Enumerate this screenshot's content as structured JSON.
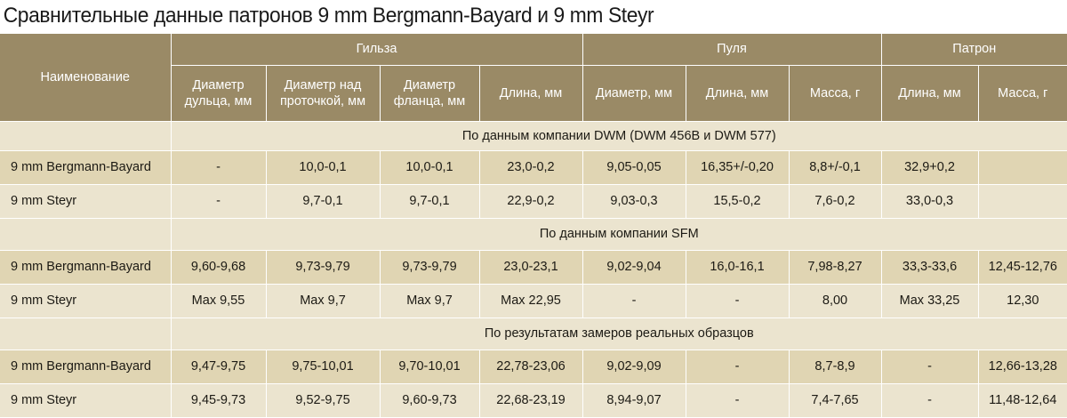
{
  "title": "Сравнительные данные патронов 9 mm Bergmann-Bayard и 9 mm Steyr",
  "header": {
    "name_col": "Наименование",
    "groups": {
      "case": "Гильза",
      "bullet": "Пуля",
      "cartridge": "Патрон"
    },
    "columns": [
      "Диаметр дульца, мм",
      "Диаметр над проточкой, мм",
      "Диаметр фланца, мм",
      "Длина, мм",
      "Диаметр, мм",
      "Длина, мм",
      "Масса, г",
      "Длина, мм",
      "Масса, г"
    ]
  },
  "sections": [
    {
      "label": "По данным компании DWM (DWM 456B и DWM 577)",
      "rows": [
        {
          "name": "9 mm Bergmann-Bayard",
          "cells": [
            "-",
            "10,0-0,1",
            "10,0-0,1",
            "23,0-0,2",
            "9,05-0,05",
            "16,35+/-0,20",
            "8,8+/-0,1",
            "32,9+0,2",
            ""
          ]
        },
        {
          "name": "9 mm Steyr",
          "cells": [
            "-",
            "9,7-0,1",
            "9,7-0,1",
            "22,9-0,2",
            "9,03-0,3",
            "15,5-0,2",
            "7,6-0,2",
            "33,0-0,3",
            ""
          ]
        }
      ]
    },
    {
      "label": "По данным компании SFM",
      "rows": [
        {
          "name": "9 mm Bergmann-Bayard",
          "cells": [
            "9,60-9,68",
            "9,73-9,79",
            "9,73-9,79",
            "23,0-23,1",
            "9,02-9,04",
            "16,0-16,1",
            "7,98-8,27",
            "33,3-33,6",
            "12,45-12,76"
          ]
        },
        {
          "name": "9 mm Steyr",
          "cells": [
            "Max 9,55",
            "Max 9,7",
            "Max 9,7",
            "Max 22,95",
            "-",
            "-",
            "8,00",
            "Max 33,25",
            "12,30"
          ]
        }
      ]
    },
    {
      "label": "По результатам замеров реальных образцов",
      "rows": [
        {
          "name": "9 mm Bergmann-Bayard",
          "cells": [
            "9,47-9,75",
            "9,75-10,01",
            "9,70-10,01",
            "22,78-23,06",
            "9,02-9,09",
            "-",
            "8,7-8,9",
            "-",
            "12,66-13,28"
          ]
        },
        {
          "name": "9 mm Steyr",
          "cells": [
            "9,45-9,73",
            "9,52-9,75",
            "9,60-9,73",
            "22,68-23,19",
            "8,94-9,07",
            "-",
            "7,4-7,65",
            "-",
            "11,48-12,64"
          ]
        }
      ]
    }
  ]
}
